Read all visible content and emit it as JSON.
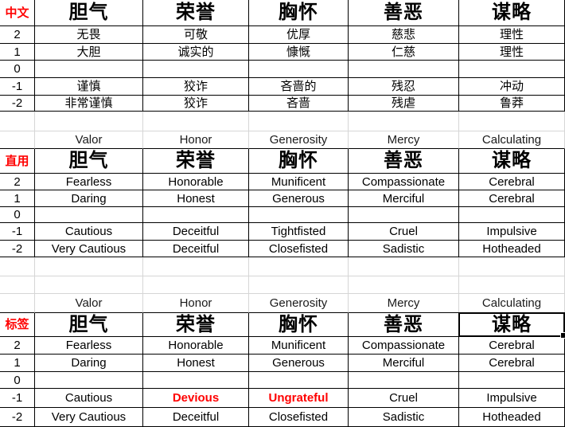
{
  "colors": {
    "label_red": "#ff0000",
    "negative_trait_red": "#ff0000",
    "grid_line": "#d6d6d6",
    "table_border": "#000000"
  },
  "levels": [
    "2",
    "1",
    "0",
    "-1",
    "-2"
  ],
  "selection": {
    "section_label": "标签",
    "selected_header": "谋略"
  },
  "sections": [
    {
      "label": "中文",
      "headers": [
        "胆气",
        "荣誉",
        "胸怀",
        "善恶",
        "谋略"
      ],
      "rows": [
        {
          "level": "2",
          "values": [
            "无畏",
            "可敬",
            "优厚",
            "慈悲",
            "理性"
          ]
        },
        {
          "level": "1",
          "values": [
            "大胆",
            "诚实的",
            "慷慨",
            "仁慈",
            "理性"
          ]
        },
        {
          "level": "0",
          "values": [
            "",
            "",
            "",
            "",
            ""
          ]
        },
        {
          "level": "-1",
          "values": [
            "谨慎",
            "狡诈",
            "吝啬的",
            "残忍",
            "冲动"
          ]
        },
        {
          "level": "-2",
          "values": [
            "非常谨慎",
            "狡诈",
            "吝啬",
            "残虐",
            "鲁莽"
          ]
        }
      ]
    },
    {
      "label": "直用",
      "pre_header": [
        "Valor",
        "Honor",
        "Generosity",
        "Mercy",
        "Calculating"
      ],
      "headers": [
        "胆气",
        "荣誉",
        "胸怀",
        "善恶",
        "谋略"
      ],
      "rows": [
        {
          "level": "2",
          "values": [
            "Fearless",
            "Honorable",
            "Munificent",
            "Compassionate",
            "Cerebral"
          ]
        },
        {
          "level": "1",
          "values": [
            "Daring",
            "Honest",
            "Generous",
            "Merciful",
            "Cerebral"
          ]
        },
        {
          "level": "0",
          "values": [
            "",
            "",
            "",
            "",
            ""
          ]
        },
        {
          "level": "-1",
          "values": [
            "Cautious",
            "Deceitful",
            "Tightfisted",
            "Cruel",
            "Impulsive"
          ]
        },
        {
          "level": "-2",
          "values": [
            "Very Cautious",
            "Deceitful",
            "Closefisted",
            "Sadistic",
            "Hotheaded"
          ]
        }
      ]
    },
    {
      "label": "标签",
      "pre_header": [
        "Valor",
        "Honor",
        "Generosity",
        "Mercy",
        "Calculating"
      ],
      "headers": [
        "胆气",
        "荣誉",
        "胸怀",
        "善恶",
        "谋略"
      ],
      "rows": [
        {
          "level": "2",
          "values": [
            "Fearless",
            "Honorable",
            "Munificent",
            "Compassionate",
            "Cerebral"
          ]
        },
        {
          "level": "1",
          "values": [
            "Daring",
            "Honest",
            "Generous",
            "Merciful",
            "Cerebral"
          ]
        },
        {
          "level": "0",
          "values": [
            "",
            "",
            "",
            "",
            ""
          ]
        },
        {
          "level": "-1",
          "values": [
            "Cautious",
            "Devious",
            "Ungrateful",
            "Cruel",
            "Impulsive"
          ]
        },
        {
          "level": "-2",
          "values": [
            "Very Cautious",
            "Deceitful",
            "Closefisted",
            "Sadistic",
            "Hotheaded"
          ]
        }
      ]
    }
  ]
}
